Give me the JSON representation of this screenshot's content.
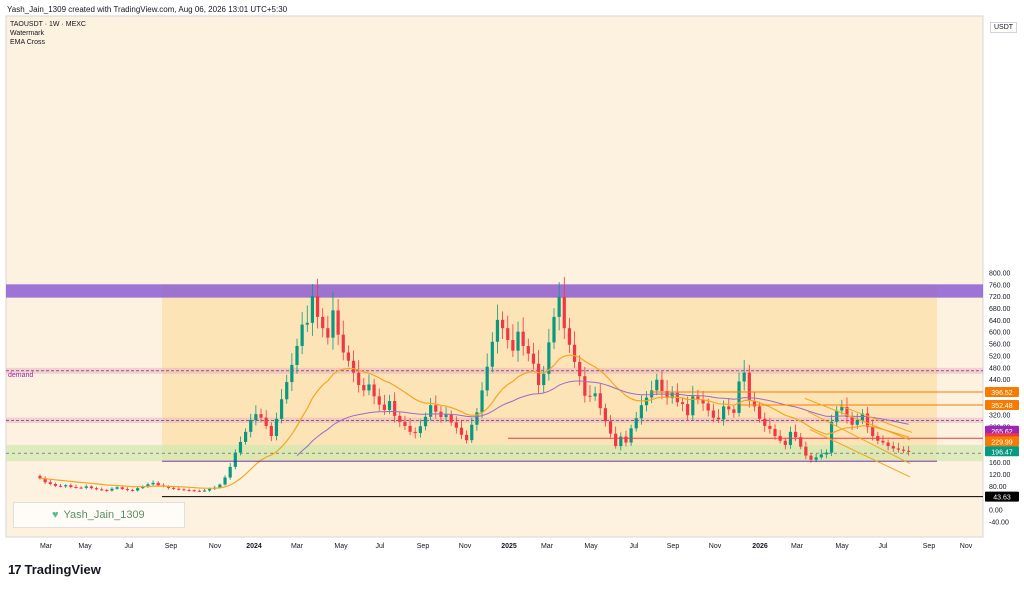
{
  "header": {
    "created_text": "Yash_Jain_1309 created with TradingView.com, Aug 06, 2026 13:01 UTC+5:30"
  },
  "legend": {
    "symbol": "TAOUSDT · 1W · MEXC",
    "indicator1": "Watermark",
    "indicator2": "EMA Cross"
  },
  "currency_label": "USDT",
  "watermark_text": "Yash_Jain_1309",
  "brand": {
    "name": "TradingView",
    "logo": "17"
  },
  "icons": {
    "watermark_icon": "heart-icon",
    "brand_icon": "tradingview-logo-icon"
  },
  "colors": {
    "up": "#089981",
    "down": "#f23645",
    "ema_fast": "#f5a623",
    "ema_slow": "#9c6bc8",
    "zone_top": "#8d5fd3",
    "zone_demand": "#cfe8b0",
    "level_line": "#f57c00"
  },
  "chart_data": {
    "type": "candlestick",
    "y_scale": "linear",
    "ylim": [
      -40,
      840
    ],
    "y_ticks": [
      -40,
      0,
      40,
      80,
      120,
      160,
      200,
      240,
      280,
      320,
      360,
      400,
      440,
      480,
      520,
      560,
      600,
      640,
      680,
      720,
      760,
      800
    ],
    "x_labels": [
      "Mar",
      "May",
      "Jul",
      "Sep",
      "Nov",
      "2024",
      "Mar",
      "May",
      "Jul",
      "Sep",
      "Nov",
      "2025",
      "Mar",
      "May",
      "Jul",
      "Sep",
      "Nov",
      "2026",
      "Mar",
      "May",
      "Jul",
      "Sep",
      "Nov"
    ],
    "annotations": {
      "demand_label": "demand",
      "price_tags": [
        {
          "value": 396.52,
          "text": "396.52",
          "color": "#f57c00"
        },
        {
          "value": 352.48,
          "text": "352.48",
          "color": "#f57c00"
        },
        {
          "value": 265.62,
          "text": "265.62",
          "color": "#9c27b0"
        },
        {
          "value": 240.27,
          "text": "240.27",
          "color": "#f23645"
        },
        {
          "value": 229.99,
          "text": "229.99",
          "color": "#f57c00"
        },
        {
          "value": 196.47,
          "text": "196.47",
          "color": "#089981"
        },
        {
          "value": 43.63,
          "text": "43.63",
          "color": "#000000"
        }
      ]
    },
    "zones": [
      {
        "name": "supply",
        "from": 715,
        "to": 760
      },
      {
        "name": "resistance-mid",
        "from": 458,
        "to": 478
      },
      {
        "name": "resistance-low",
        "from": 292,
        "to": 310
      },
      {
        "name": "demand",
        "from": 163,
        "to": 218
      }
    ],
    "closes": [
      105,
      92,
      86,
      80,
      78,
      82,
      76,
      74,
      73,
      78,
      72,
      68,
      66,
      64,
      70,
      75,
      69,
      66,
      64,
      72,
      78,
      85,
      90,
      82,
      78,
      73,
      70,
      68,
      66,
      65,
      63,
      62,
      64,
      70,
      74,
      84,
      108,
      144,
      192,
      228,
      262,
      302,
      322,
      310,
      282,
      248,
      306,
      372,
      430,
      488,
      552,
      624,
      630,
      720,
      650,
      612,
      580,
      672,
      590,
      530,
      502,
      462,
      420,
      402,
      422,
      382,
      354,
      336,
      366,
      316,
      296,
      282,
      262,
      258,
      281,
      313,
      352,
      330,
      312,
      320,
      294,
      276,
      252,
      234,
      286,
      328,
      402,
      482,
      566,
      640,
      612,
      572,
      536,
      600,
      552,
      526,
      492,
      420,
      458,
      564,
      650,
      718,
      612,
      556,
      498,
      450,
      384,
      382,
      392,
      342,
      298,
      256,
      214,
      246,
      226,
      274,
      308,
      352,
      378,
      402,
      438,
      400,
      376,
      394,
      362,
      356,
      318,
      382,
      370,
      358,
      334,
      310,
      304,
      348,
      338,
      326,
      432,
      462,
      366,
      348,
      306,
      282,
      272,
      248,
      232,
      218,
      262,
      244,
      212,
      182,
      168,
      176,
      186,
      192,
      296,
      334,
      346,
      312,
      286,
      300,
      324,
      278,
      248,
      232,
      226,
      214,
      206,
      202,
      198,
      196
    ]
  }
}
